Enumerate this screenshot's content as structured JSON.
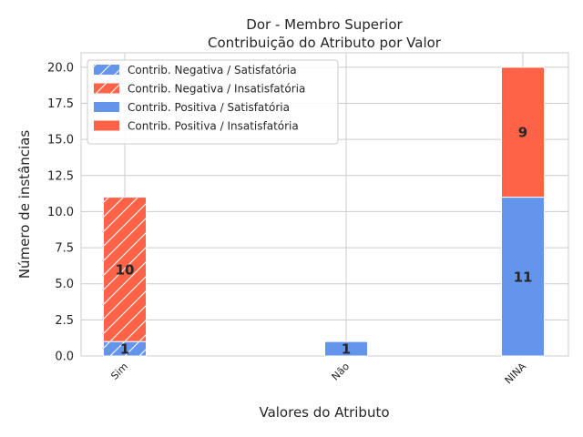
{
  "chart_data": {
    "type": "bar",
    "stacked": true,
    "title": "Dor - Membro Superior",
    "subtitle": "Contribuição do Atributo por Valor",
    "xlabel": "Valores do Atributo",
    "ylabel": "Número de instâncias",
    "categories": [
      "Sim",
      "Não",
      "NINA"
    ],
    "ylim": [
      0,
      21
    ],
    "yticks": [
      "0.0",
      "2.5",
      "5.0",
      "7.5",
      "10.0",
      "12.5",
      "15.0",
      "17.5",
      "20.0"
    ],
    "grid": true,
    "legend_position": "top-left",
    "series": [
      {
        "name": "Contrib. Negativa / Satisfatória",
        "values": [
          1,
          0,
          0
        ],
        "color": "#6495ED",
        "hatch": true,
        "group": "negative"
      },
      {
        "name": "Contrib. Negativa / Insatisfatória",
        "values": [
          10,
          0,
          0
        ],
        "color": "#FF6347",
        "hatch": true,
        "group": "negative"
      },
      {
        "name": "Contrib. Positiva / Satisfatória",
        "values": [
          0,
          1,
          11
        ],
        "color": "#6495ED",
        "hatch": false,
        "group": "positive"
      },
      {
        "name": "Contrib. Positiva / Insatisfatória",
        "values": [
          0,
          0,
          9
        ],
        "color": "#FF6347",
        "hatch": false,
        "group": "positive"
      }
    ],
    "bar_labels": [
      {
        "category": "Sim",
        "value": 1,
        "series": 0
      },
      {
        "category": "Sim",
        "value": 10,
        "series": 1
      },
      {
        "category": "Não",
        "value": 1,
        "series": 2
      },
      {
        "category": "NINA",
        "value": 11,
        "series": 2
      },
      {
        "category": "NINA",
        "value": 9,
        "series": 3
      }
    ]
  }
}
